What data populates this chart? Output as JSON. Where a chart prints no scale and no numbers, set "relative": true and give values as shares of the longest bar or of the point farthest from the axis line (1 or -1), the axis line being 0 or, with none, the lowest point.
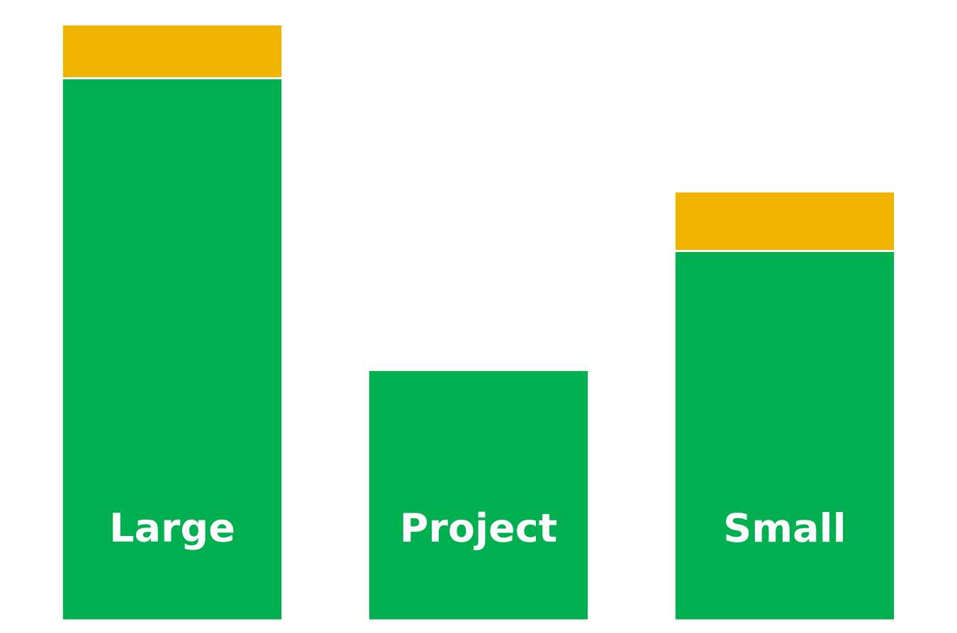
{
  "chart_data": {
    "type": "bar",
    "relative": true,
    "stacked": true,
    "categories": [
      "Large",
      "Project",
      "Small"
    ],
    "series": [
      {
        "color": "#00b050",
        "values": [
          0.91,
          0.42,
          0.62
        ]
      },
      {
        "color": "#f0b400",
        "values": [
          0.09,
          null,
          0.1
        ]
      }
    ]
  }
}
